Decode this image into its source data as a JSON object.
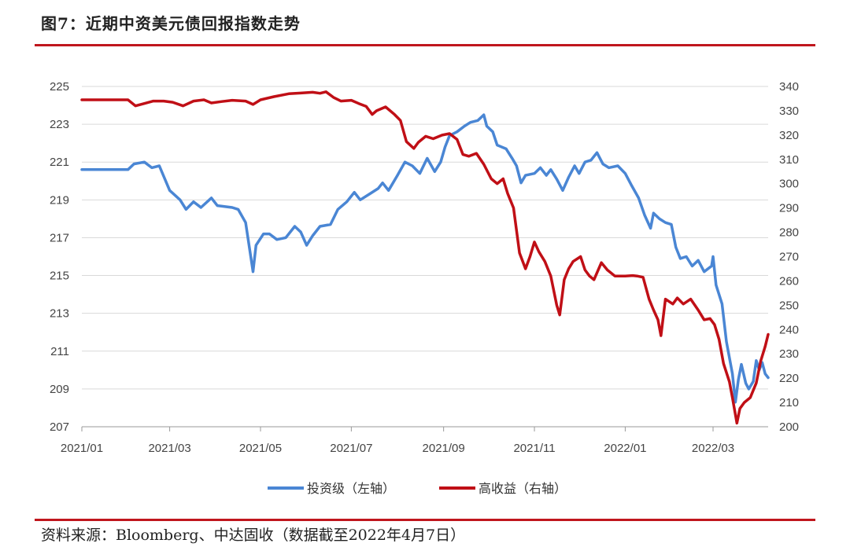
{
  "header": {
    "title": "图7：近期中资美元债回报指数走势"
  },
  "footer": {
    "source": "资料来源：Bloomberg、中达固收（数据截至2022年4月7日）"
  },
  "colors": {
    "investment_grade": "#4a86d4",
    "high_yield": "#c00f16",
    "rule": "#c0161d",
    "grid": "#d9d9d9"
  },
  "chart_data": {
    "type": "line",
    "title": "",
    "x_tick_labels": [
      "2021/01",
      "2021/03",
      "2021/05",
      "2021/07",
      "2021/09",
      "2021/11",
      "2022/01",
      "2022/03"
    ],
    "x_range": [
      "2021-01-01",
      "2022-04-07"
    ],
    "y_left": {
      "ylim": [
        207,
        225
      ],
      "ticks": [
        225,
        223,
        221,
        219,
        217,
        215,
        213,
        211,
        209,
        207
      ]
    },
    "y_right": {
      "ylim": [
        200,
        340
      ],
      "ticks": [
        340,
        330,
        320,
        310,
        300,
        290,
        280,
        270,
        260,
        250,
        240,
        230,
        220,
        210,
        200
      ]
    },
    "grid": true,
    "legend_position": "bottom",
    "series": [
      {
        "name": "投资级（左轴）",
        "axis": "left",
        "color": "#4a86d4",
        "points": [
          [
            "2021-01-01",
            220.6
          ],
          [
            "2021-02-01",
            220.6
          ],
          [
            "2021-02-05",
            220.9
          ],
          [
            "2021-02-12",
            221.0
          ],
          [
            "2021-02-17",
            220.7
          ],
          [
            "2021-02-22",
            220.8
          ],
          [
            "2021-03-01",
            219.5
          ],
          [
            "2021-03-08",
            219.0
          ],
          [
            "2021-03-12",
            218.5
          ],
          [
            "2021-03-17",
            218.9
          ],
          [
            "2021-03-22",
            218.6
          ],
          [
            "2021-03-29",
            219.1
          ],
          [
            "2021-04-02",
            218.7
          ],
          [
            "2021-04-12",
            218.6
          ],
          [
            "2021-04-16",
            218.5
          ],
          [
            "2021-04-21",
            217.8
          ],
          [
            "2021-04-26",
            215.2
          ],
          [
            "2021-04-28",
            216.6
          ],
          [
            "2021-05-03",
            217.2
          ],
          [
            "2021-05-07",
            217.2
          ],
          [
            "2021-05-12",
            216.9
          ],
          [
            "2021-05-18",
            217.0
          ],
          [
            "2021-05-24",
            217.6
          ],
          [
            "2021-05-28",
            217.3
          ],
          [
            "2021-06-01",
            216.6
          ],
          [
            "2021-06-05",
            217.1
          ],
          [
            "2021-06-10",
            217.6
          ],
          [
            "2021-06-17",
            217.7
          ],
          [
            "2021-06-22",
            218.5
          ],
          [
            "2021-06-28",
            218.9
          ],
          [
            "2021-07-03",
            219.4
          ],
          [
            "2021-07-07",
            219.0
          ],
          [
            "2021-07-13",
            219.3
          ],
          [
            "2021-07-19",
            219.6
          ],
          [
            "2021-07-22",
            219.9
          ],
          [
            "2021-07-26",
            219.5
          ],
          [
            "2021-08-01",
            220.3
          ],
          [
            "2021-08-06",
            221.0
          ],
          [
            "2021-08-11",
            220.8
          ],
          [
            "2021-08-16",
            220.4
          ],
          [
            "2021-08-21",
            221.2
          ],
          [
            "2021-08-26",
            220.5
          ],
          [
            "2021-08-30",
            221.0
          ],
          [
            "2021-09-02",
            221.8
          ],
          [
            "2021-09-05",
            222.4
          ],
          [
            "2021-09-10",
            222.6
          ],
          [
            "2021-09-15",
            222.9
          ],
          [
            "2021-09-19",
            223.1
          ],
          [
            "2021-09-24",
            223.2
          ],
          [
            "2021-09-28",
            223.5
          ],
          [
            "2021-09-30",
            222.9
          ],
          [
            "2021-10-04",
            222.6
          ],
          [
            "2021-10-07",
            221.9
          ],
          [
            "2021-10-13",
            221.7
          ],
          [
            "2021-10-17",
            221.2
          ],
          [
            "2021-10-20",
            220.8
          ],
          [
            "2021-10-23",
            219.9
          ],
          [
            "2021-10-26",
            220.3
          ],
          [
            "2021-11-01",
            220.4
          ],
          [
            "2021-11-05",
            220.7
          ],
          [
            "2021-11-09",
            220.3
          ],
          [
            "2021-11-12",
            220.6
          ],
          [
            "2021-11-16",
            220.1
          ],
          [
            "2021-11-20",
            219.5
          ],
          [
            "2021-11-24",
            220.2
          ],
          [
            "2021-11-28",
            220.8
          ],
          [
            "2021-12-01",
            220.4
          ],
          [
            "2021-12-05",
            221.0
          ],
          [
            "2021-12-09",
            221.1
          ],
          [
            "2021-12-13",
            221.5
          ],
          [
            "2021-12-17",
            220.9
          ],
          [
            "2021-12-21",
            220.7
          ],
          [
            "2021-12-27",
            220.8
          ],
          [
            "2022-01-01",
            220.4
          ],
          [
            "2022-01-05",
            219.8
          ],
          [
            "2022-01-10",
            219.1
          ],
          [
            "2022-01-14",
            218.2
          ],
          [
            "2022-01-18",
            217.5
          ],
          [
            "2022-01-20",
            218.3
          ],
          [
            "2022-01-24",
            218.0
          ],
          [
            "2022-01-28",
            217.8
          ],
          [
            "2022-02-01",
            217.7
          ],
          [
            "2022-02-04",
            216.5
          ],
          [
            "2022-02-07",
            215.9
          ],
          [
            "2022-02-11",
            216.0
          ],
          [
            "2022-02-15",
            215.5
          ],
          [
            "2022-02-19",
            215.8
          ],
          [
            "2022-02-23",
            215.2
          ],
          [
            "2022-02-28",
            215.5
          ],
          [
            "2022-03-01",
            216.0
          ],
          [
            "2022-03-03",
            214.5
          ],
          [
            "2022-03-07",
            213.5
          ],
          [
            "2022-03-10",
            211.5
          ],
          [
            "2022-03-14",
            209.8
          ],
          [
            "2022-03-16",
            208.3
          ],
          [
            "2022-03-18",
            209.5
          ],
          [
            "2022-03-20",
            210.3
          ],
          [
            "2022-03-23",
            209.3
          ],
          [
            "2022-03-25",
            209.0
          ],
          [
            "2022-03-28",
            209.4
          ],
          [
            "2022-03-30",
            210.5
          ],
          [
            "2022-04-01",
            210.0
          ],
          [
            "2022-04-03",
            210.4
          ],
          [
            "2022-04-05",
            209.8
          ],
          [
            "2022-04-07",
            209.6
          ]
        ]
      },
      {
        "name": "高收益（右轴）",
        "axis": "right",
        "color": "#c00f16",
        "points": [
          [
            "2021-01-01",
            334.5
          ],
          [
            "2021-02-01",
            334.5
          ],
          [
            "2021-02-06",
            332.0
          ],
          [
            "2021-02-12",
            333.0
          ],
          [
            "2021-02-18",
            334.0
          ],
          [
            "2021-02-25",
            334.0
          ],
          [
            "2021-03-03",
            333.5
          ],
          [
            "2021-03-10",
            332.0
          ],
          [
            "2021-03-17",
            334.0
          ],
          [
            "2021-03-24",
            334.5
          ],
          [
            "2021-03-29",
            333.2
          ],
          [
            "2021-04-05",
            333.8
          ],
          [
            "2021-04-12",
            334.3
          ],
          [
            "2021-04-21",
            334.0
          ],
          [
            "2021-04-26",
            332.6
          ],
          [
            "2021-05-01",
            334.5
          ],
          [
            "2021-05-10",
            335.8
          ],
          [
            "2021-05-20",
            337.0
          ],
          [
            "2021-05-28",
            337.3
          ],
          [
            "2021-06-05",
            337.6
          ],
          [
            "2021-06-10",
            337.2
          ],
          [
            "2021-06-14",
            337.8
          ],
          [
            "2021-06-19",
            335.5
          ],
          [
            "2021-06-24",
            334.0
          ],
          [
            "2021-07-01",
            334.3
          ],
          [
            "2021-07-06",
            333.0
          ],
          [
            "2021-07-11",
            331.8
          ],
          [
            "2021-07-15",
            328.5
          ],
          [
            "2021-07-18",
            330.0
          ],
          [
            "2021-07-24",
            331.6
          ],
          [
            "2021-07-30",
            328.5
          ],
          [
            "2021-08-03",
            326.0
          ],
          [
            "2021-08-07",
            317.3
          ],
          [
            "2021-08-12",
            314.5
          ],
          [
            "2021-08-15",
            317.0
          ],
          [
            "2021-08-20",
            319.5
          ],
          [
            "2021-08-25",
            318.5
          ],
          [
            "2021-08-31",
            320.0
          ],
          [
            "2021-09-05",
            320.6
          ],
          [
            "2021-09-10",
            318.2
          ],
          [
            "2021-09-14",
            312.0
          ],
          [
            "2021-09-18",
            311.3
          ],
          [
            "2021-09-23",
            312.5
          ],
          [
            "2021-09-28",
            308.0
          ],
          [
            "2021-10-03",
            302.0
          ],
          [
            "2021-10-07",
            300.0
          ],
          [
            "2021-10-11",
            302.0
          ],
          [
            "2021-10-14",
            296.0
          ],
          [
            "2021-10-18",
            290.0
          ],
          [
            "2021-10-22",
            271.5
          ],
          [
            "2021-10-26",
            265.0
          ],
          [
            "2021-10-29",
            270.0
          ],
          [
            "2021-11-01",
            276.0
          ],
          [
            "2021-11-04",
            272.0
          ],
          [
            "2021-11-08",
            268.0
          ],
          [
            "2021-11-12",
            262.0
          ],
          [
            "2021-11-16",
            250.0
          ],
          [
            "2021-11-18",
            246.0
          ],
          [
            "2021-11-21",
            260.5
          ],
          [
            "2021-11-24",
            265.0
          ],
          [
            "2021-11-27",
            268.0
          ],
          [
            "2021-12-02",
            270.0
          ],
          [
            "2021-12-05",
            264.5
          ],
          [
            "2021-12-08",
            262.0
          ],
          [
            "2021-12-11",
            260.5
          ],
          [
            "2021-12-16",
            267.5
          ],
          [
            "2021-12-20",
            264.5
          ],
          [
            "2021-12-25",
            262.0
          ],
          [
            "2022-01-01",
            262.0
          ],
          [
            "2022-01-06",
            262.2
          ],
          [
            "2022-01-09",
            262.0
          ],
          [
            "2022-01-13",
            261.5
          ],
          [
            "2022-01-17",
            252.5
          ],
          [
            "2022-01-20",
            248.0
          ],
          [
            "2022-01-23",
            244.0
          ],
          [
            "2022-01-25",
            237.5
          ],
          [
            "2022-01-28",
            252.5
          ],
          [
            "2022-02-02",
            250.5
          ],
          [
            "2022-02-05",
            253.0
          ],
          [
            "2022-02-09",
            250.5
          ],
          [
            "2022-02-14",
            252.5
          ],
          [
            "2022-02-19",
            248.0
          ],
          [
            "2022-02-23",
            244.0
          ],
          [
            "2022-02-27",
            244.5
          ],
          [
            "2022-03-02",
            242.0
          ],
          [
            "2022-03-05",
            236.0
          ],
          [
            "2022-03-08",
            226.0
          ],
          [
            "2022-03-12",
            218.5
          ],
          [
            "2022-03-14",
            212.0
          ],
          [
            "2022-03-17",
            201.5
          ],
          [
            "2022-03-19",
            207.5
          ],
          [
            "2022-03-22",
            210.0
          ],
          [
            "2022-03-26",
            212.0
          ],
          [
            "2022-03-30",
            218.0
          ],
          [
            "2022-04-02",
            227.0
          ],
          [
            "2022-04-05",
            233.0
          ],
          [
            "2022-04-07",
            238.0
          ]
        ]
      }
    ]
  }
}
